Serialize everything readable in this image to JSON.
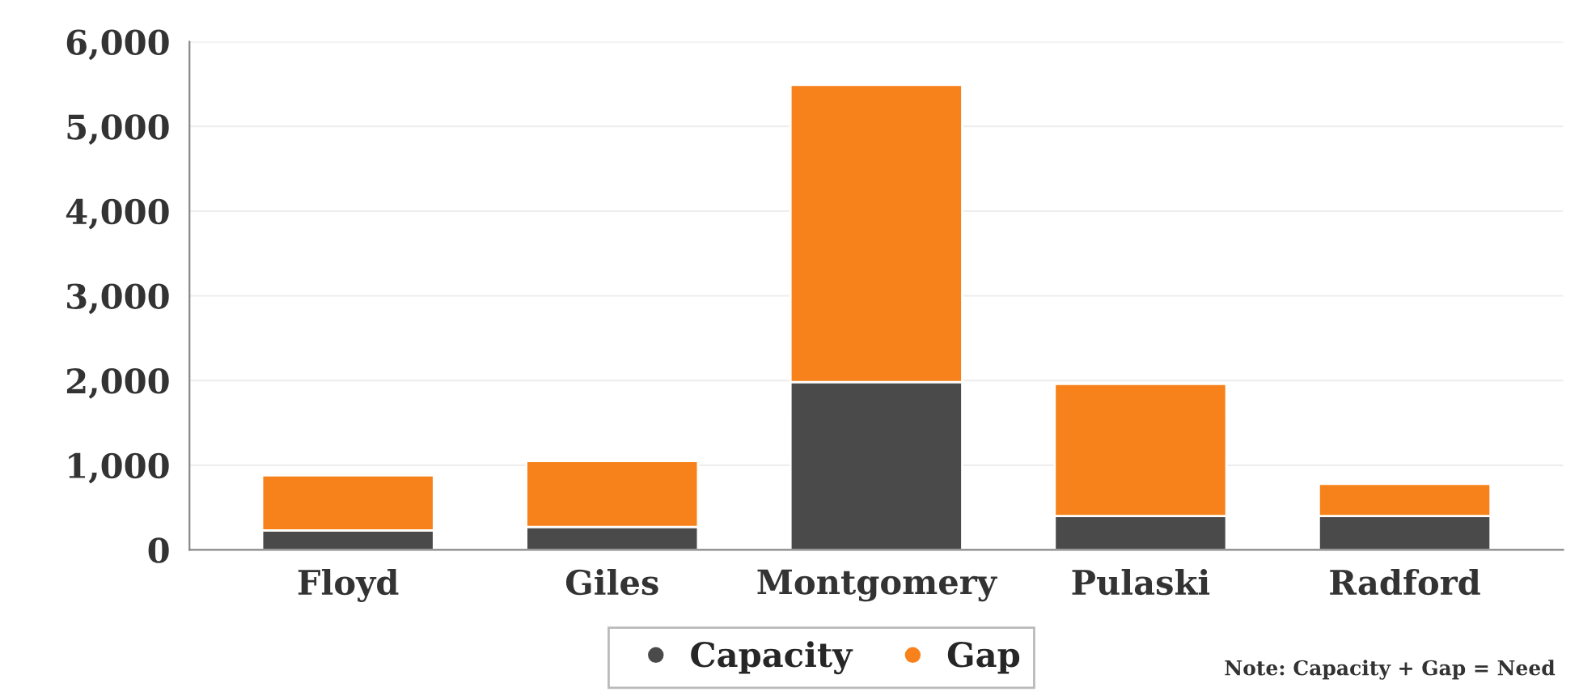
{
  "chart_data": {
    "type": "bar",
    "stacked": true,
    "categories": [
      "Floyd",
      "Giles",
      "Montgomery",
      "Pulaski",
      "Radford"
    ],
    "series": [
      {
        "name": "Capacity",
        "color": "#4a4a4a",
        "values": [
          230,
          270,
          1980,
          400,
          400
        ]
      },
      {
        "name": "Gap",
        "color": "#f7821b",
        "values": [
          650,
          780,
          3510,
          1560,
          380
        ]
      }
    ],
    "ylim": [
      0,
      6000
    ],
    "yticks": [
      {
        "value": 0,
        "label": "0"
      },
      {
        "value": 1000,
        "label": "1,000"
      },
      {
        "value": 2000,
        "label": "2,000"
      },
      {
        "value": 3000,
        "label": "3,000"
      },
      {
        "value": 4000,
        "label": "4,000"
      },
      {
        "value": 5000,
        "label": "5,000"
      },
      {
        "value": 6000,
        "label": "6,000"
      }
    ],
    "grid": "y",
    "legend": "bottom",
    "annotations": [
      "Note: Capacity + Gap = Need"
    ]
  }
}
